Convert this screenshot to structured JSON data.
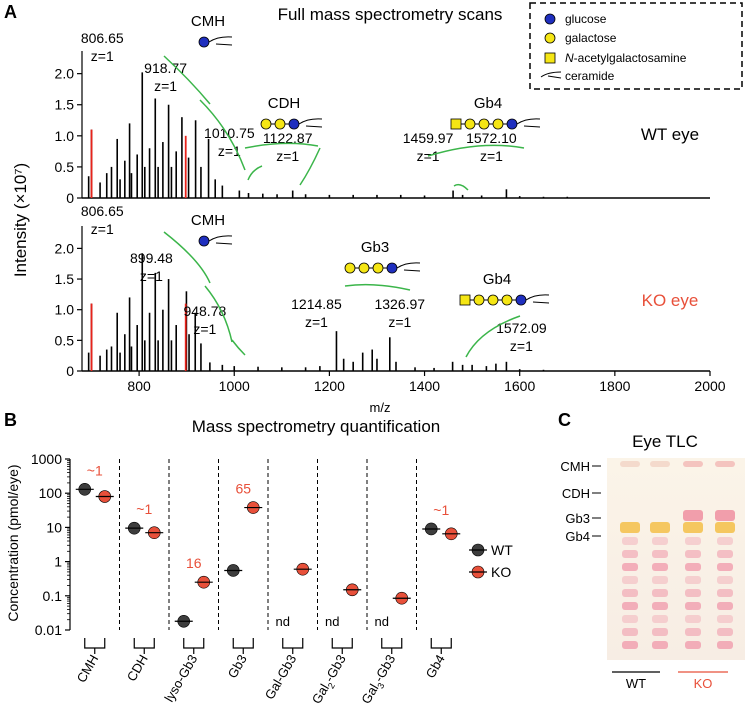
{
  "panel_labels": {
    "a": "A",
    "b": "B",
    "c": "C"
  },
  "colors": {
    "wt": "#3d3d3d",
    "ko": "#e8503a",
    "red_peak": "#e8231b",
    "green": "#3bb54a",
    "glucose": "#1f2fbf",
    "galactose": "#f5e614"
  },
  "legend": {
    "glucose": "glucose",
    "galactose": "galactose",
    "galnac_prefix": "N",
    "galnac_rest": "-acetylgalactosamine",
    "ceramide": "ceramide"
  },
  "chart_data": [
    {
      "type": "line",
      "name": "panel-A",
      "title": "Full mass spectrometry scans",
      "xlabel": "m/z",
      "ylabel": "Intensity (×10⁷)",
      "xlim": [
        680,
        2000
      ],
      "ylim": [
        0,
        2.3
      ],
      "xticks": [
        800,
        1000,
        1200,
        1400,
        1600,
        1800,
        2000
      ],
      "yticks": [
        0,
        0.5,
        1.0,
        1.5,
        2.0
      ],
      "ytick_labels": [
        "0",
        "0.5",
        "1.0",
        "1.5",
        "2.0"
      ],
      "series": [
        {
          "name": "WT eye",
          "peaks": [
            [
              694,
              0.35
            ],
            [
              700,
              1.1
            ],
            [
              718,
              0.25
            ],
            [
              732,
              0.4
            ],
            [
              742,
              0.5
            ],
            [
              754,
              0.95
            ],
            [
              760,
              0.3
            ],
            [
              770,
              0.6
            ],
            [
              780,
              1.2
            ],
            [
              784,
              0.4
            ],
            [
              796,
              0.7
            ],
            [
              806.65,
              2.02
            ],
            [
              812,
              0.5
            ],
            [
              822,
              0.8
            ],
            [
              834,
              1.6
            ],
            [
              840,
              0.5
            ],
            [
              850,
              0.9
            ],
            [
              862,
              1.5
            ],
            [
              868,
              0.5
            ],
            [
              878,
              0.75
            ],
            [
              890,
              1.3
            ],
            [
              904,
              0.65
            ],
            [
              918.77,
              1.25
            ],
            [
              930,
              0.5
            ],
            [
              946,
              0.95
            ],
            [
              960,
              0.3
            ],
            [
              975,
              0.2
            ],
            [
              1010.75,
              0.12
            ],
            [
              1030,
              0.08
            ],
            [
              1060,
              0.07
            ],
            [
              1090,
              0.06
            ],
            [
              1122.87,
              0.12
            ],
            [
              1150,
              0.06
            ],
            [
              1200,
              0.05
            ],
            [
              1250,
              0.05
            ],
            [
              1300,
              0.05
            ],
            [
              1350,
              0.05
            ],
            [
              1400,
              0.04
            ],
            [
              1459.97,
              0.12
            ],
            [
              1480,
              0.05
            ],
            [
              1520,
              0.04
            ],
            [
              1572.1,
              0.14
            ],
            [
              1600,
              0.03
            ],
            [
              1650,
              0.02
            ],
            [
              1700,
              0.02
            ]
          ],
          "red_peaks": [
            [
              700,
              1.1
            ],
            [
              898,
              1.0
            ]
          ],
          "annotations": [
            {
              "label": "806.65",
              "z": "z=1",
              "mz": 806.65
            },
            {
              "label": "918.77",
              "z": "z=1",
              "mz": 918.77
            },
            {
              "label": "1010.75",
              "z": "z=1",
              "mz": 1010.75
            },
            {
              "label": "1122.87",
              "z": "z=1",
              "mz": 1122.87
            },
            {
              "label": "1459.97",
              "z": "z=1",
              "mz": 1459.97
            },
            {
              "label": "1572.10",
              "z": "z=1",
              "mz": 1572.1
            }
          ],
          "glycan_labels": [
            "CMH",
            "CDH",
            "Gb4"
          ]
        },
        {
          "name": "KO eye",
          "peaks": [
            [
              694,
              0.3
            ],
            [
              700,
              1.1
            ],
            [
              718,
              0.25
            ],
            [
              732,
              0.35
            ],
            [
              742,
              0.4
            ],
            [
              754,
              0.95
            ],
            [
              760,
              0.3
            ],
            [
              770,
              0.6
            ],
            [
              780,
              1.2
            ],
            [
              784,
              0.4
            ],
            [
              796,
              0.75
            ],
            [
              806.65,
              1.92
            ],
            [
              812,
              0.5
            ],
            [
              822,
              0.95
            ],
            [
              834,
              1.6
            ],
            [
              840,
              0.5
            ],
            [
              850,
              1.0
            ],
            [
              862,
              1.5
            ],
            [
              868,
              0.5
            ],
            [
              878,
              0.75
            ],
            [
              899.48,
              1.3
            ],
            [
              905,
              0.6
            ],
            [
              918,
              0.95
            ],
            [
              930,
              0.45
            ],
            [
              948.78,
              0.14
            ],
            [
              975,
              0.1
            ],
            [
              1000,
              0.08
            ],
            [
              1050,
              0.07
            ],
            [
              1100,
              0.06
            ],
            [
              1150,
              0.06
            ],
            [
              1180,
              0.08
            ],
            [
              1214.85,
              0.65
            ],
            [
              1230,
              0.2
            ],
            [
              1250,
              0.15
            ],
            [
              1270,
              0.3
            ],
            [
              1290,
              0.35
            ],
            [
              1300,
              0.2
            ],
            [
              1326.97,
              0.55
            ],
            [
              1340,
              0.15
            ],
            [
              1380,
              0.06
            ],
            [
              1420,
              0.05
            ],
            [
              1459,
              0.15
            ],
            [
              1480,
              0.1
            ],
            [
              1500,
              0.1
            ],
            [
              1530,
              0.08
            ],
            [
              1550,
              0.12
            ],
            [
              1572.09,
              0.15
            ],
            [
              1600,
              0.03
            ],
            [
              1650,
              0.02
            ]
          ],
          "red_peaks": [
            [
              700,
              1.1
            ],
            [
              898,
              1.1
            ]
          ],
          "annotations": [
            {
              "label": "806.65",
              "z": "z=1",
              "mz": 806.65
            },
            {
              "label": "899.48",
              "z": "z=1",
              "mz": 899.48
            },
            {
              "label": "948.78",
              "z": "z=1",
              "mz": 948.78
            },
            {
              "label": "1214.85",
              "z": "z=1",
              "mz": 1214.85
            },
            {
              "label": "1326.97",
              "z": "z=1",
              "mz": 1326.97
            },
            {
              "label": "1572.09",
              "z": "z=1",
              "mz": 1572.09
            }
          ],
          "glycan_labels": [
            "CMH",
            "Gb3",
            "Gb4"
          ]
        }
      ]
    },
    {
      "type": "scatter",
      "name": "panel-B",
      "title": "Mass spectrometry quantification",
      "ylabel": "Concentration (pmol/eye)",
      "yscale": "log",
      "ylim": [
        0.01,
        1000
      ],
      "yticks": [
        0.01,
        0.1,
        1,
        10,
        100,
        1000
      ],
      "ytick_labels": [
        "0.01",
        "0.1",
        "1",
        "10",
        "100",
        "1000"
      ],
      "categories": [
        "CMH",
        "CDH",
        "lyso-Gb3",
        "Gb3",
        "Gal-Gb3",
        "Gal₂-Gb3",
        "Gal₃-Gb3",
        "Gb4"
      ],
      "series": [
        {
          "name": "WT",
          "values": [
            130,
            9.5,
            0.018,
            0.55,
            null,
            null,
            null,
            9.0
          ]
        },
        {
          "name": "KO",
          "values": [
            80,
            7.0,
            0.25,
            38,
            0.6,
            0.15,
            0.085,
            6.5
          ]
        }
      ],
      "fold_labels": [
        "~1",
        "~1",
        "16",
        "65",
        "",
        "",
        "",
        "~1"
      ],
      "nd_label": "nd",
      "legend": [
        "WT",
        "KO"
      ]
    }
  ],
  "tlc": {
    "title": "Eye TLC",
    "labels": [
      "CMH",
      "CDH",
      "Gb3",
      "Gb4"
    ],
    "lanes": [
      "WT",
      "KO"
    ]
  }
}
